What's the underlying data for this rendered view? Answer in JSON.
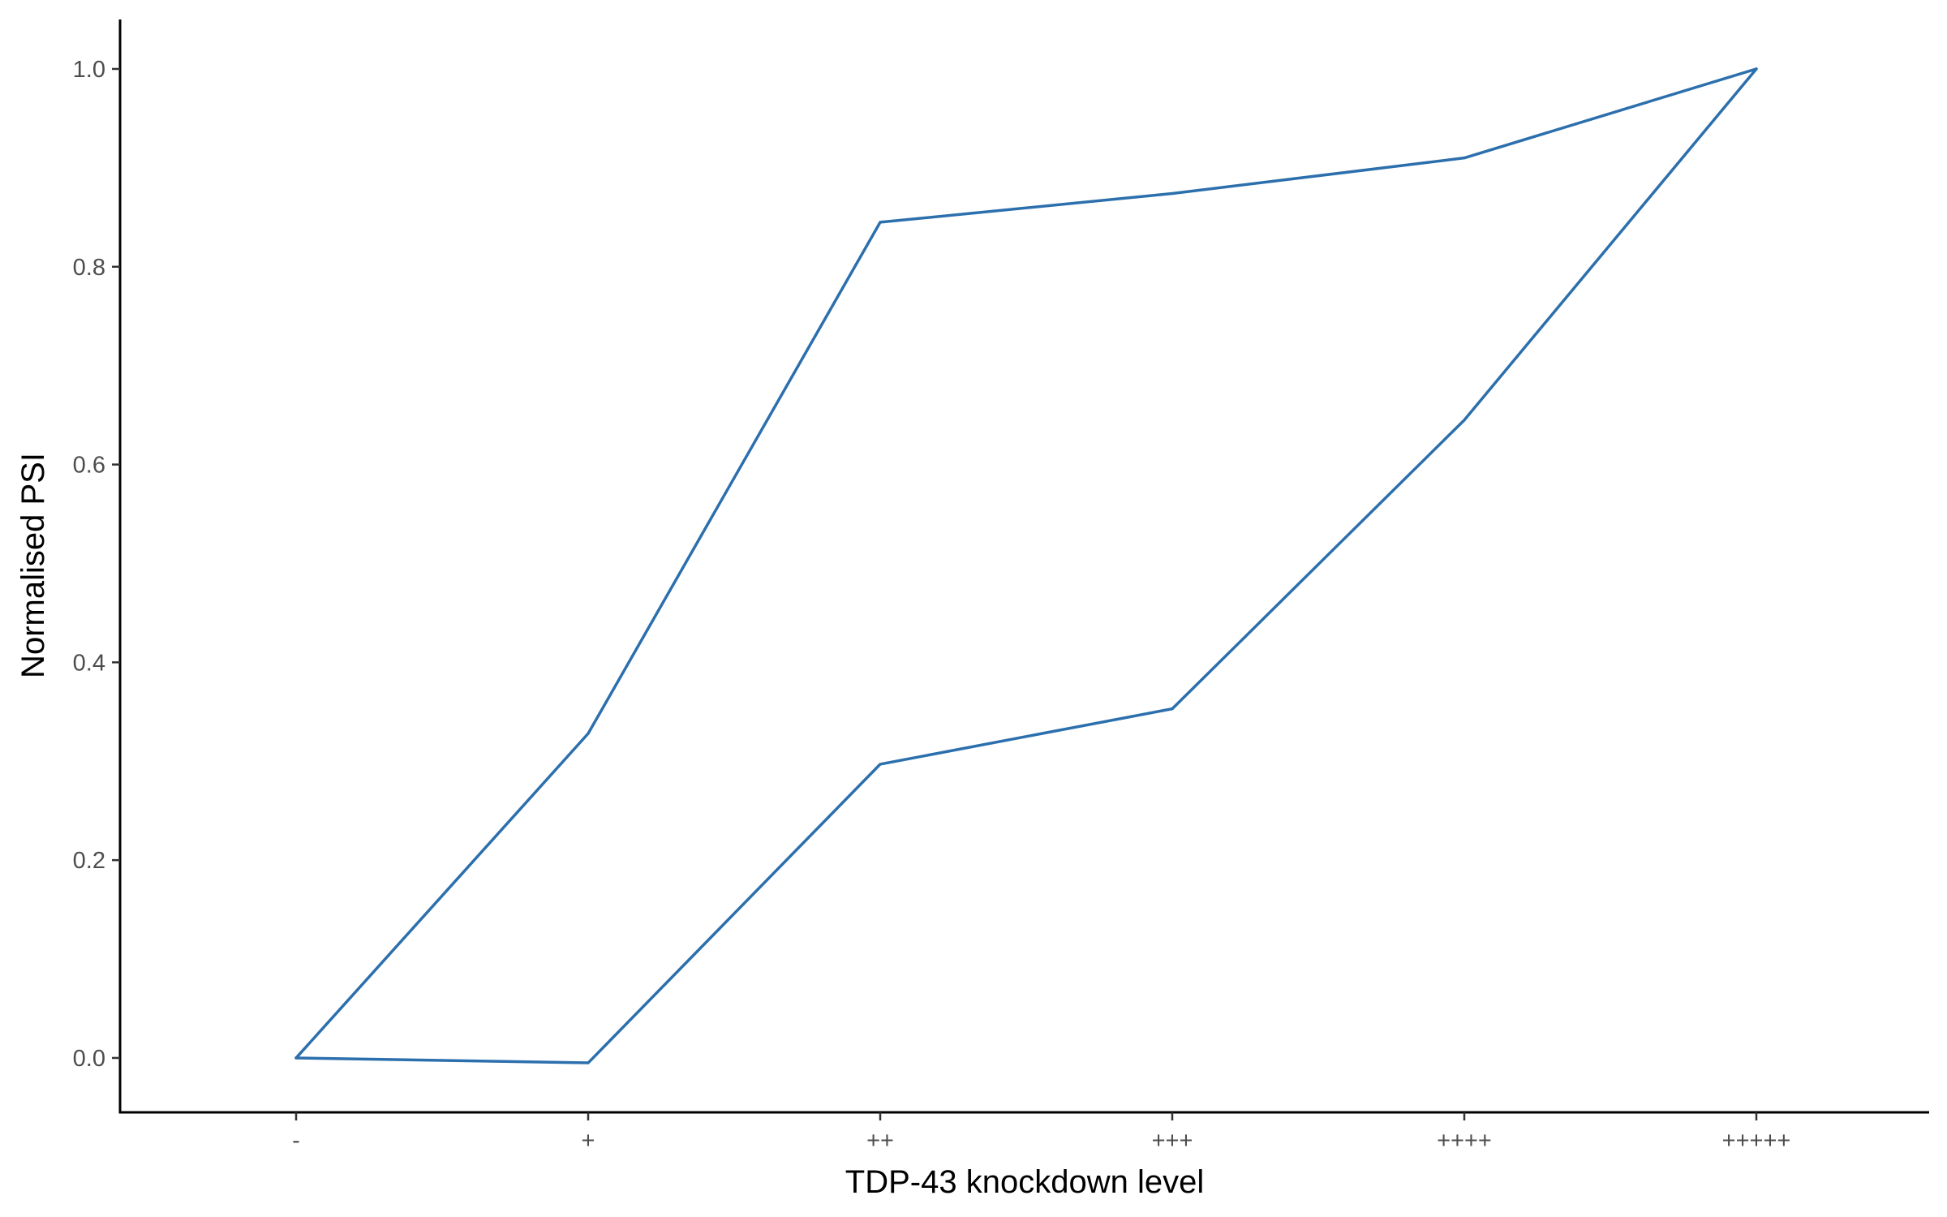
{
  "chart_data": {
    "type": "line",
    "title": "",
    "xlabel": "TDP-43 knockdown level",
    "ylabel": "Normalised PSI",
    "categories": [
      "-",
      "+",
      "++",
      "+++",
      "++++",
      "+++++"
    ],
    "ylim": [
      -0.055,
      1.05
    ],
    "yticks": [
      0.0,
      0.2,
      0.4,
      0.6,
      0.8,
      1.0
    ],
    "ytick_labels": [
      "0.0",
      "0.2",
      "0.4",
      "0.6",
      "0.8",
      "1.0"
    ],
    "grid": false,
    "legend": "none",
    "color": "#2c6fad",
    "series": [
      {
        "values": [
          0.0,
          0.328,
          0.845,
          0.874,
          0.91,
          1.0
        ]
      },
      {
        "values": [
          0.0,
          -0.005,
          0.297,
          0.353,
          0.645,
          1.0
        ]
      }
    ]
  }
}
